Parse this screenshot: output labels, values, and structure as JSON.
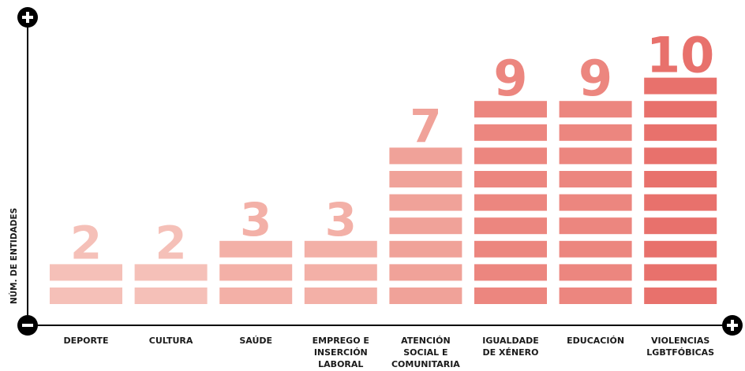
{
  "chart_data": {
    "type": "bar",
    "ylabel": "NÚM. DE ENTIDADES",
    "axis_ends": {
      "top": "+",
      "origin": "−",
      "right": "+"
    },
    "categories": [
      [
        "DEPORTE"
      ],
      [
        "CULTURA"
      ],
      [
        "SAÚDE"
      ],
      [
        "EMPREGO E",
        "INSERCIÓN",
        "LABORAL"
      ],
      [
        "ATENCIÓN",
        "SOCIAL E",
        "COMUNITARIA"
      ],
      [
        "IGUALDADE",
        "DE XÉNERO"
      ],
      [
        "EDUCACIÓN"
      ],
      [
        "VIOLENCIAS",
        "LGBTFÓBICAS"
      ]
    ],
    "values": [
      2,
      2,
      3,
      3,
      7,
      9,
      9,
      10
    ],
    "colors": [
      "#f5c0b8",
      "#f5c0b8",
      "#f3b0a7",
      "#f3b0a7",
      "#f0a299",
      "#ec867f",
      "#ec867f",
      "#e8716c"
    ]
  }
}
